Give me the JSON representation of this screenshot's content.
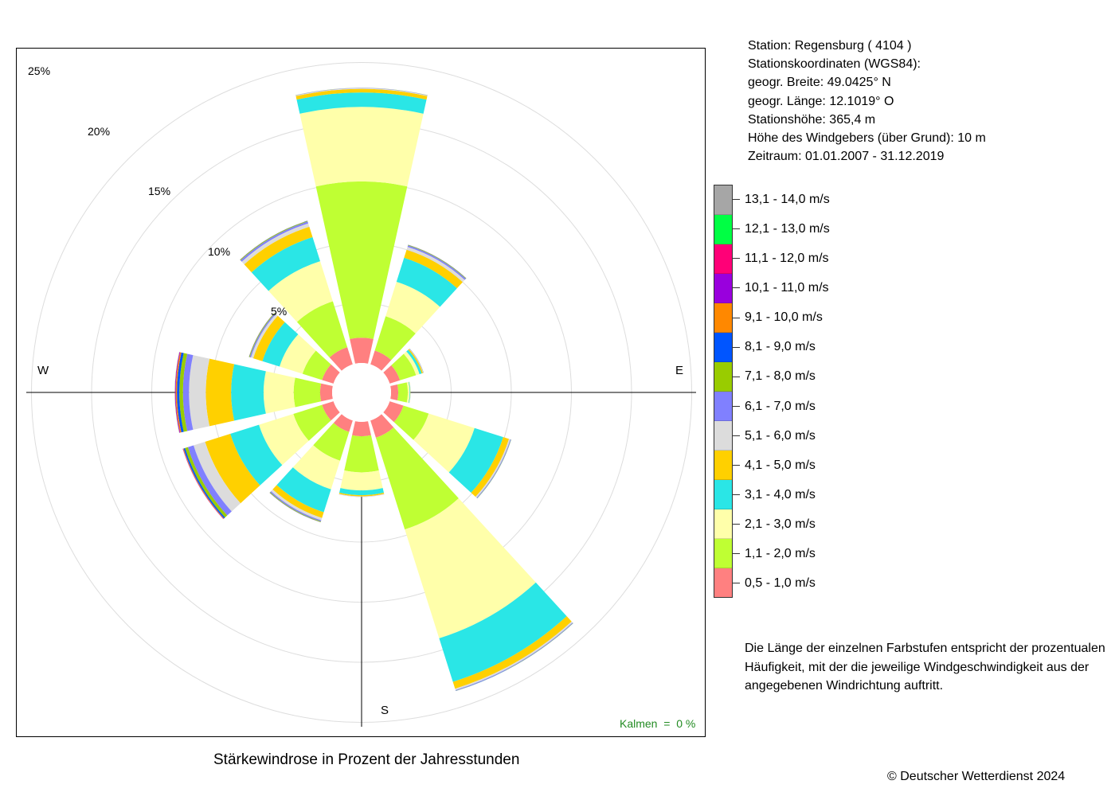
{
  "info": {
    "station": "Station:  Regensburg  ( 4104 )",
    "coords_label": "Stationskoordinaten (WGS84):",
    "latitude": "geogr. Breite: 49.0425° N",
    "longitude": "geogr. Länge: 12.1019° O",
    "elevation": "Stationshöhe: 365,4 m",
    "sensor_height": "Höhe des Windgebers (über Grund): 10 m",
    "period": "Zeitraum: 01.01.2007 - 31.12.2019"
  },
  "compass": {
    "west": "W",
    "east": "E",
    "south": "S"
  },
  "calms": {
    "label": "Kalmen  =  0 %"
  },
  "note": [
    "Die Länge der einzelnen Farbstufen entspricht der prozentualen",
    "Häufigkeit, mit der die jeweilige Windgeschwindigkeit aus der",
    "angegebenen Windrichtung auftritt."
  ],
  "copyright": "© Deutscher Wetterdienst  2024",
  "chart_data": {
    "type": "wind-rose",
    "title": "Stärkewindrose in Prozent der Jahresstunden",
    "unit": "%",
    "rings": [
      5,
      10,
      15,
      20,
      25
    ],
    "ring_labels": [
      "5%",
      "10%",
      "15%",
      "20%",
      "25%"
    ],
    "calms_percent": 0,
    "sectors": [
      0,
      30,
      60,
      90,
      120,
      150,
      180,
      210,
      240,
      270,
      300,
      330
    ],
    "classes": [
      {
        "label": "0,5 - 1,0 m/s",
        "color": "#ff8080"
      },
      {
        "label": "1,1 - 2,0 m/s",
        "color": "#bfff33"
      },
      {
        "label": "2,1 - 3,0 m/s",
        "color": "#ffffaa"
      },
      {
        "label": "3,1 - 4,0 m/s",
        "color": "#2ae6e6"
      },
      {
        "label": "4,1 - 5,0 m/s",
        "color": "#ffd000"
      },
      {
        "label": "5,1 - 6,0 m/s",
        "color": "#dcdcdc"
      },
      {
        "label": "6,1 - 7,0 m/s",
        "color": "#8080ff"
      },
      {
        "label": "7,1 - 8,0 m/s",
        "color": "#99cc00"
      },
      {
        "label": "8,1 - 9,0 m/s",
        "color": "#0055ff"
      },
      {
        "label": "9,1 - 10,0 m/s",
        "color": "#ff8800"
      },
      {
        "label": "10,1 - 11,0 m/s",
        "color": "#9900dd"
      },
      {
        "label": "11,1 - 12,0 m/s",
        "color": "#ff0077"
      },
      {
        "label": "12,1 - 13,0 m/s",
        "color": "#00ff44"
      },
      {
        "label": "13,1 - 14,0 m/s",
        "color": "#a6a6a6"
      }
    ],
    "series": [
      {
        "direction": 0,
        "values": [
          2.1,
          13.0,
          6.2,
          1.2,
          0.3,
          0.06,
          0.02,
          0.01,
          0,
          0,
          0,
          0,
          0,
          0
        ]
      },
      {
        "direction": 30,
        "values": [
          1.2,
          3.0,
          3.0,
          2.1,
          0.7,
          0.25,
          0.12,
          0.04,
          0.02,
          0.01,
          0,
          0,
          0,
          0
        ]
      },
      {
        "direction": 60,
        "values": [
          0.9,
          1.4,
          0.3,
          0.2,
          0.1,
          0.04,
          0.02,
          0.01,
          0,
          0,
          0,
          0,
          0,
          0
        ]
      },
      {
        "direction": 90,
        "values": [
          0.6,
          0.8,
          0.15,
          0.05,
          0.02,
          0.01,
          0,
          0,
          0,
          0,
          0,
          0,
          0,
          0
        ]
      },
      {
        "direction": 120,
        "values": [
          1.2,
          2.2,
          4.0,
          2.5,
          0.5,
          0.12,
          0.05,
          0.02,
          0.01,
          0,
          0,
          0,
          0,
          0
        ]
      },
      {
        "direction": 150,
        "values": [
          1.5,
          8.0,
          9.5,
          3.8,
          0.6,
          0.12,
          0.05,
          0.02,
          0.01,
          0,
          0,
          0,
          0,
          0
        ]
      },
      {
        "direction": 180,
        "values": [
          1.2,
          3.0,
          1.5,
          0.4,
          0.1,
          0.03,
          0.01,
          0,
          0,
          0,
          0,
          0,
          0,
          0
        ]
      },
      {
        "direction": 210,
        "values": [
          1.0,
          2.5,
          2.5,
          2.0,
          0.5,
          0.2,
          0.1,
          0.05,
          0.02,
          0.01,
          0,
          0,
          0,
          0
        ]
      },
      {
        "direction": 240,
        "values": [
          1.0,
          2.5,
          3.0,
          2.5,
          2.2,
          1.0,
          0.5,
          0.25,
          0.12,
          0.05,
          0.02,
          0.01,
          0,
          0
        ]
      },
      {
        "direction": 270,
        "values": [
          1.0,
          2.2,
          2.5,
          2.7,
          2.1,
          1.4,
          0.5,
          0.3,
          0.2,
          0.1,
          0.05,
          0.02,
          0.01,
          0
        ]
      },
      {
        "direction": 300,
        "values": [
          1.0,
          1.7,
          2.0,
          1.5,
          0.8,
          0.2,
          0.1,
          0.05,
          0.02,
          0.01,
          0,
          0,
          0,
          0
        ]
      },
      {
        "direction": 330,
        "values": [
          1.5,
          4.0,
          3.5,
          2.1,
          0.9,
          0.3,
          0.15,
          0.05,
          0.02,
          0.01,
          0,
          0,
          0,
          0
        ]
      }
    ]
  }
}
